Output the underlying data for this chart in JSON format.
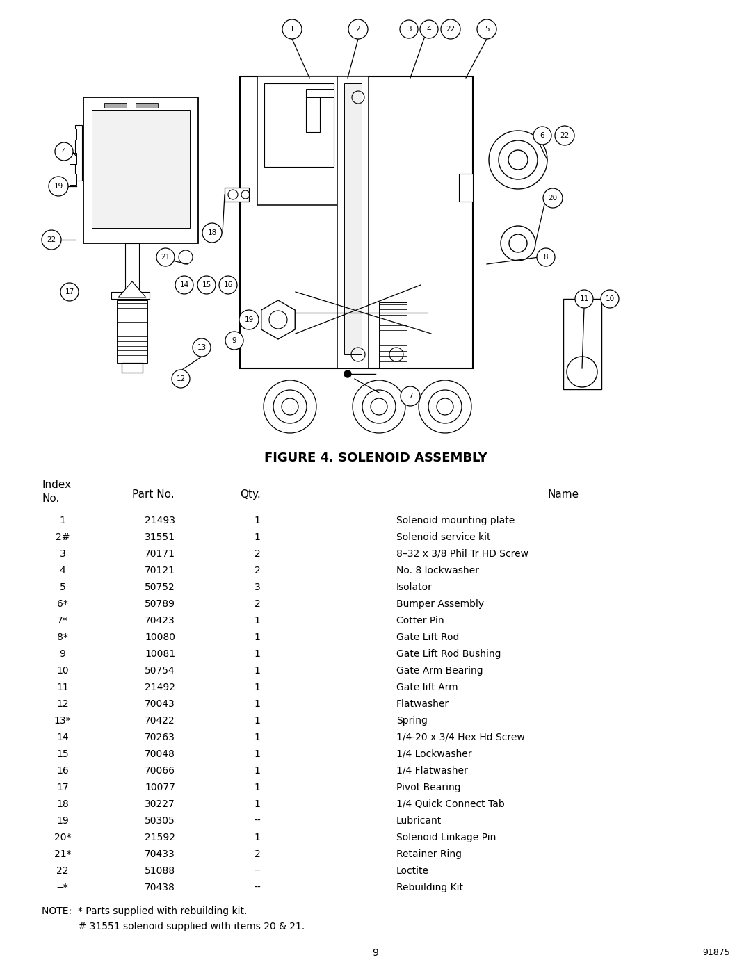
{
  "title": "FIGURE 4. SOLENOID ASSEMBLY",
  "figure_number": "9",
  "part_number_ref": "91875",
  "rows": [
    [
      "1",
      "21493",
      "1",
      "Solenoid mounting plate"
    ],
    [
      "2#",
      "31551",
      "1",
      "Solenoid service kit"
    ],
    [
      "3",
      "70171",
      "2",
      "8–32 x 3/8 Phil Tr HD Screw"
    ],
    [
      "4",
      "70121",
      "2",
      "No. 8 lockwasher"
    ],
    [
      "5",
      "50752",
      "3",
      "Isolator"
    ],
    [
      "6*",
      "50789",
      "2",
      "Bumper Assembly"
    ],
    [
      "7*",
      "70423",
      "1",
      "Cotter Pin"
    ],
    [
      "8*",
      "10080",
      "1",
      "Gate Lift Rod"
    ],
    [
      "9",
      "10081",
      "1",
      "Gate Lift Rod Bushing"
    ],
    [
      "10",
      "50754",
      "1",
      "Gate Arm Bearing"
    ],
    [
      "11",
      "21492",
      "1",
      "Gate lift Arm"
    ],
    [
      "12",
      "70043",
      "1",
      "Flatwasher"
    ],
    [
      "13*",
      "70422",
      "1",
      "Spring"
    ],
    [
      "14",
      "70263",
      "1",
      "1/4-20 x 3/4 Hex Hd Screw"
    ],
    [
      "15",
      "70048",
      "1",
      "1/4 Lockwasher"
    ],
    [
      "16",
      "70066",
      "1",
      "1/4 Flatwasher"
    ],
    [
      "17",
      "10077",
      "1",
      "Pivot Bearing"
    ],
    [
      "18",
      "30227",
      "1",
      "1/4 Quick Connect Tab"
    ],
    [
      "19",
      "50305",
      "--",
      "Lubricant"
    ],
    [
      "20*",
      "21592",
      "1",
      "Solenoid Linkage Pin"
    ],
    [
      "21*",
      "70433",
      "2",
      "Retainer Ring"
    ],
    [
      "22",
      "51088",
      "--",
      "Loctite"
    ],
    [
      "--*",
      "70438",
      "--",
      "Rebuilding Kit"
    ]
  ],
  "note_line1": "NOTE:  * Parts supplied with rebuilding kit.",
  "note_line2": "            # 31551 solenoid supplied with items 20 & 21.",
  "bg_color": "#ffffff",
  "text_color": "#000000",
  "font_size_header": 11,
  "font_size_row": 10,
  "font_size_title": 13,
  "font_size_note": 10
}
